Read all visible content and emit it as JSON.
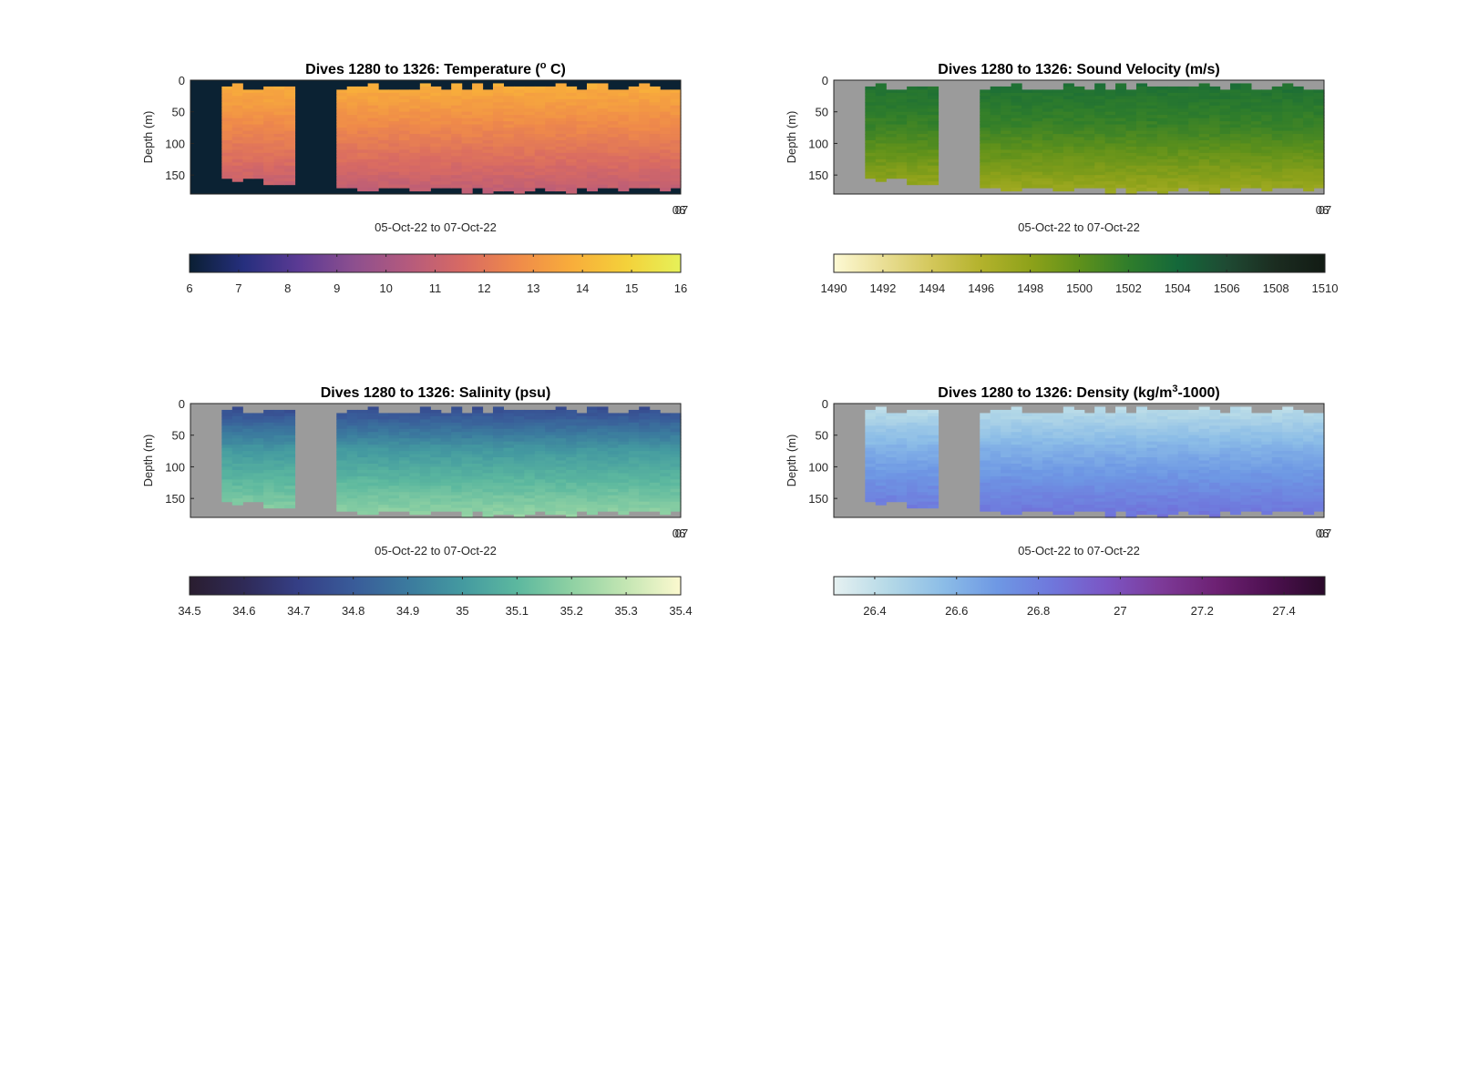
{
  "chart_data": [
    {
      "type": "heatmap",
      "title": "Dives 1280 to 1326: Temperature (° C)",
      "title_parts": [
        "Dives 1280 to 1326: Temperature (",
        "o",
        " C)"
      ],
      "title_sup": "o",
      "xlabel": "05-Oct-22 to 07-Oct-22",
      "ylabel": "Depth (m)",
      "yticks": [
        "0",
        "50",
        "100",
        "150"
      ],
      "ylim": [
        0,
        180
      ],
      "x_corner_tick": "06",
      "x_corner_tick_overlap": "07",
      "colorbar": {
        "min": 6,
        "max": 16,
        "ticks": [
          "6",
          "7",
          "8",
          "9",
          "10",
          "11",
          "12",
          "13",
          "14",
          "15",
          "16"
        ]
      },
      "colormap": [
        "#0a1f33",
        "#262f7e",
        "#5b3a94",
        "#8c4f8f",
        "#b45a7d",
        "#d86a63",
        "#ef8a4a",
        "#f8ad3b",
        "#f4d13a",
        "#e6f159"
      ],
      "background_color": "#0b2233",
      "profile": {
        "surface": 13.9,
        "mid": 12.6,
        "deep": 10.7
      },
      "dives": {
        "count": 47,
        "gap": [
          10,
          13
        ]
      }
    },
    {
      "type": "heatmap",
      "title": "Dives 1280 to 1326: Sound Velocity (m/s)",
      "title_parts": [
        "Dives 1280 to 1326: Sound Velocity (m/s)"
      ],
      "xlabel": "05-Oct-22 to 07-Oct-22",
      "ylabel": "Depth (m)",
      "yticks": [
        "0",
        "50",
        "100",
        "150"
      ],
      "ylim": [
        0,
        180
      ],
      "x_corner_tick": "06",
      "x_corner_tick_overlap": "07",
      "colorbar": {
        "min": 1490,
        "max": 1510,
        "ticks": [
          "1490",
          "1492",
          "1494",
          "1496",
          "1498",
          "1500",
          "1502",
          "1504",
          "1506",
          "1508",
          "1510"
        ]
      },
      "colormap": [
        "#fdf9d4",
        "#eadf96",
        "#d3c75a",
        "#b3b22c",
        "#8ea21a",
        "#5f911b",
        "#2f7d2b",
        "#14683a",
        "#1f4a33",
        "#1b2c20",
        "#121b14"
      ],
      "background_color": "#9b9b9b",
      "profile": {
        "surface": 1503.3,
        "mid": 1501.5,
        "deep": 1497.0
      },
      "dives": {
        "count": 47,
        "gap": [
          10,
          13
        ]
      }
    },
    {
      "type": "heatmap",
      "title": "Dives 1280 to 1326: Salinity (psu)",
      "title_parts": [
        "Dives 1280 to 1326: Salinity (psu)"
      ],
      "xlabel": "05-Oct-22 to 07-Oct-22",
      "ylabel": "Depth (m)",
      "yticks": [
        "0",
        "50",
        "100",
        "150"
      ],
      "ylim": [
        0,
        180
      ],
      "x_corner_tick": "06",
      "x_corner_tick_overlap": "07",
      "colorbar": {
        "min": 34.5,
        "max": 35.4,
        "ticks": [
          "34.5",
          "34.6",
          "34.7",
          "34.8",
          "34.9",
          "35",
          "35.1",
          "35.2",
          "35.3",
          "35.4"
        ]
      },
      "colormap": [
        "#2a1d2f",
        "#2f2a57",
        "#353f86",
        "#395b99",
        "#3b7a9e",
        "#449aa0",
        "#5cb89f",
        "#8fd1a3",
        "#c4e6b3",
        "#fcf9cf"
      ],
      "background_color": "#9b9b9b",
      "profile": {
        "surface": 34.73,
        "mid": 35.0,
        "deep": 35.22
      },
      "dives": {
        "count": 47,
        "gap": [
          10,
          13
        ]
      }
    },
    {
      "type": "heatmap",
      "title": "Dives 1280 to 1326: Density (kg/m³-1000)",
      "title_parts": [
        "Dives 1280 to 1326: Density (kg/m",
        "3",
        "-1000)"
      ],
      "title_sup": "3",
      "xlabel": "05-Oct-22 to 07-Oct-22",
      "ylabel": "Depth (m)",
      "yticks": [
        "0",
        "50",
        "100",
        "150"
      ],
      "ylim": [
        0,
        180
      ],
      "x_corner_tick": "06",
      "x_corner_tick_overlap": "07",
      "colorbar": {
        "min": 26.3,
        "max": 27.5,
        "ticks": [
          "26.4",
          "26.6",
          "26.8",
          "27",
          "27.2",
          "27.4"
        ]
      },
      "colormap": [
        "#e6f1f1",
        "#b5d9e7",
        "#8cbde7",
        "#6e98e4",
        "#6f77dc",
        "#7b55c4",
        "#7d3a98",
        "#6d2173",
        "#4d1050",
        "#2a0a2a"
      ],
      "background_color": "#9b9b9b",
      "profile": {
        "surface": 26.4,
        "mid": 26.62,
        "deep": 26.86
      },
      "dives": {
        "count": 47,
        "gap": [
          10,
          13
        ]
      }
    }
  ]
}
